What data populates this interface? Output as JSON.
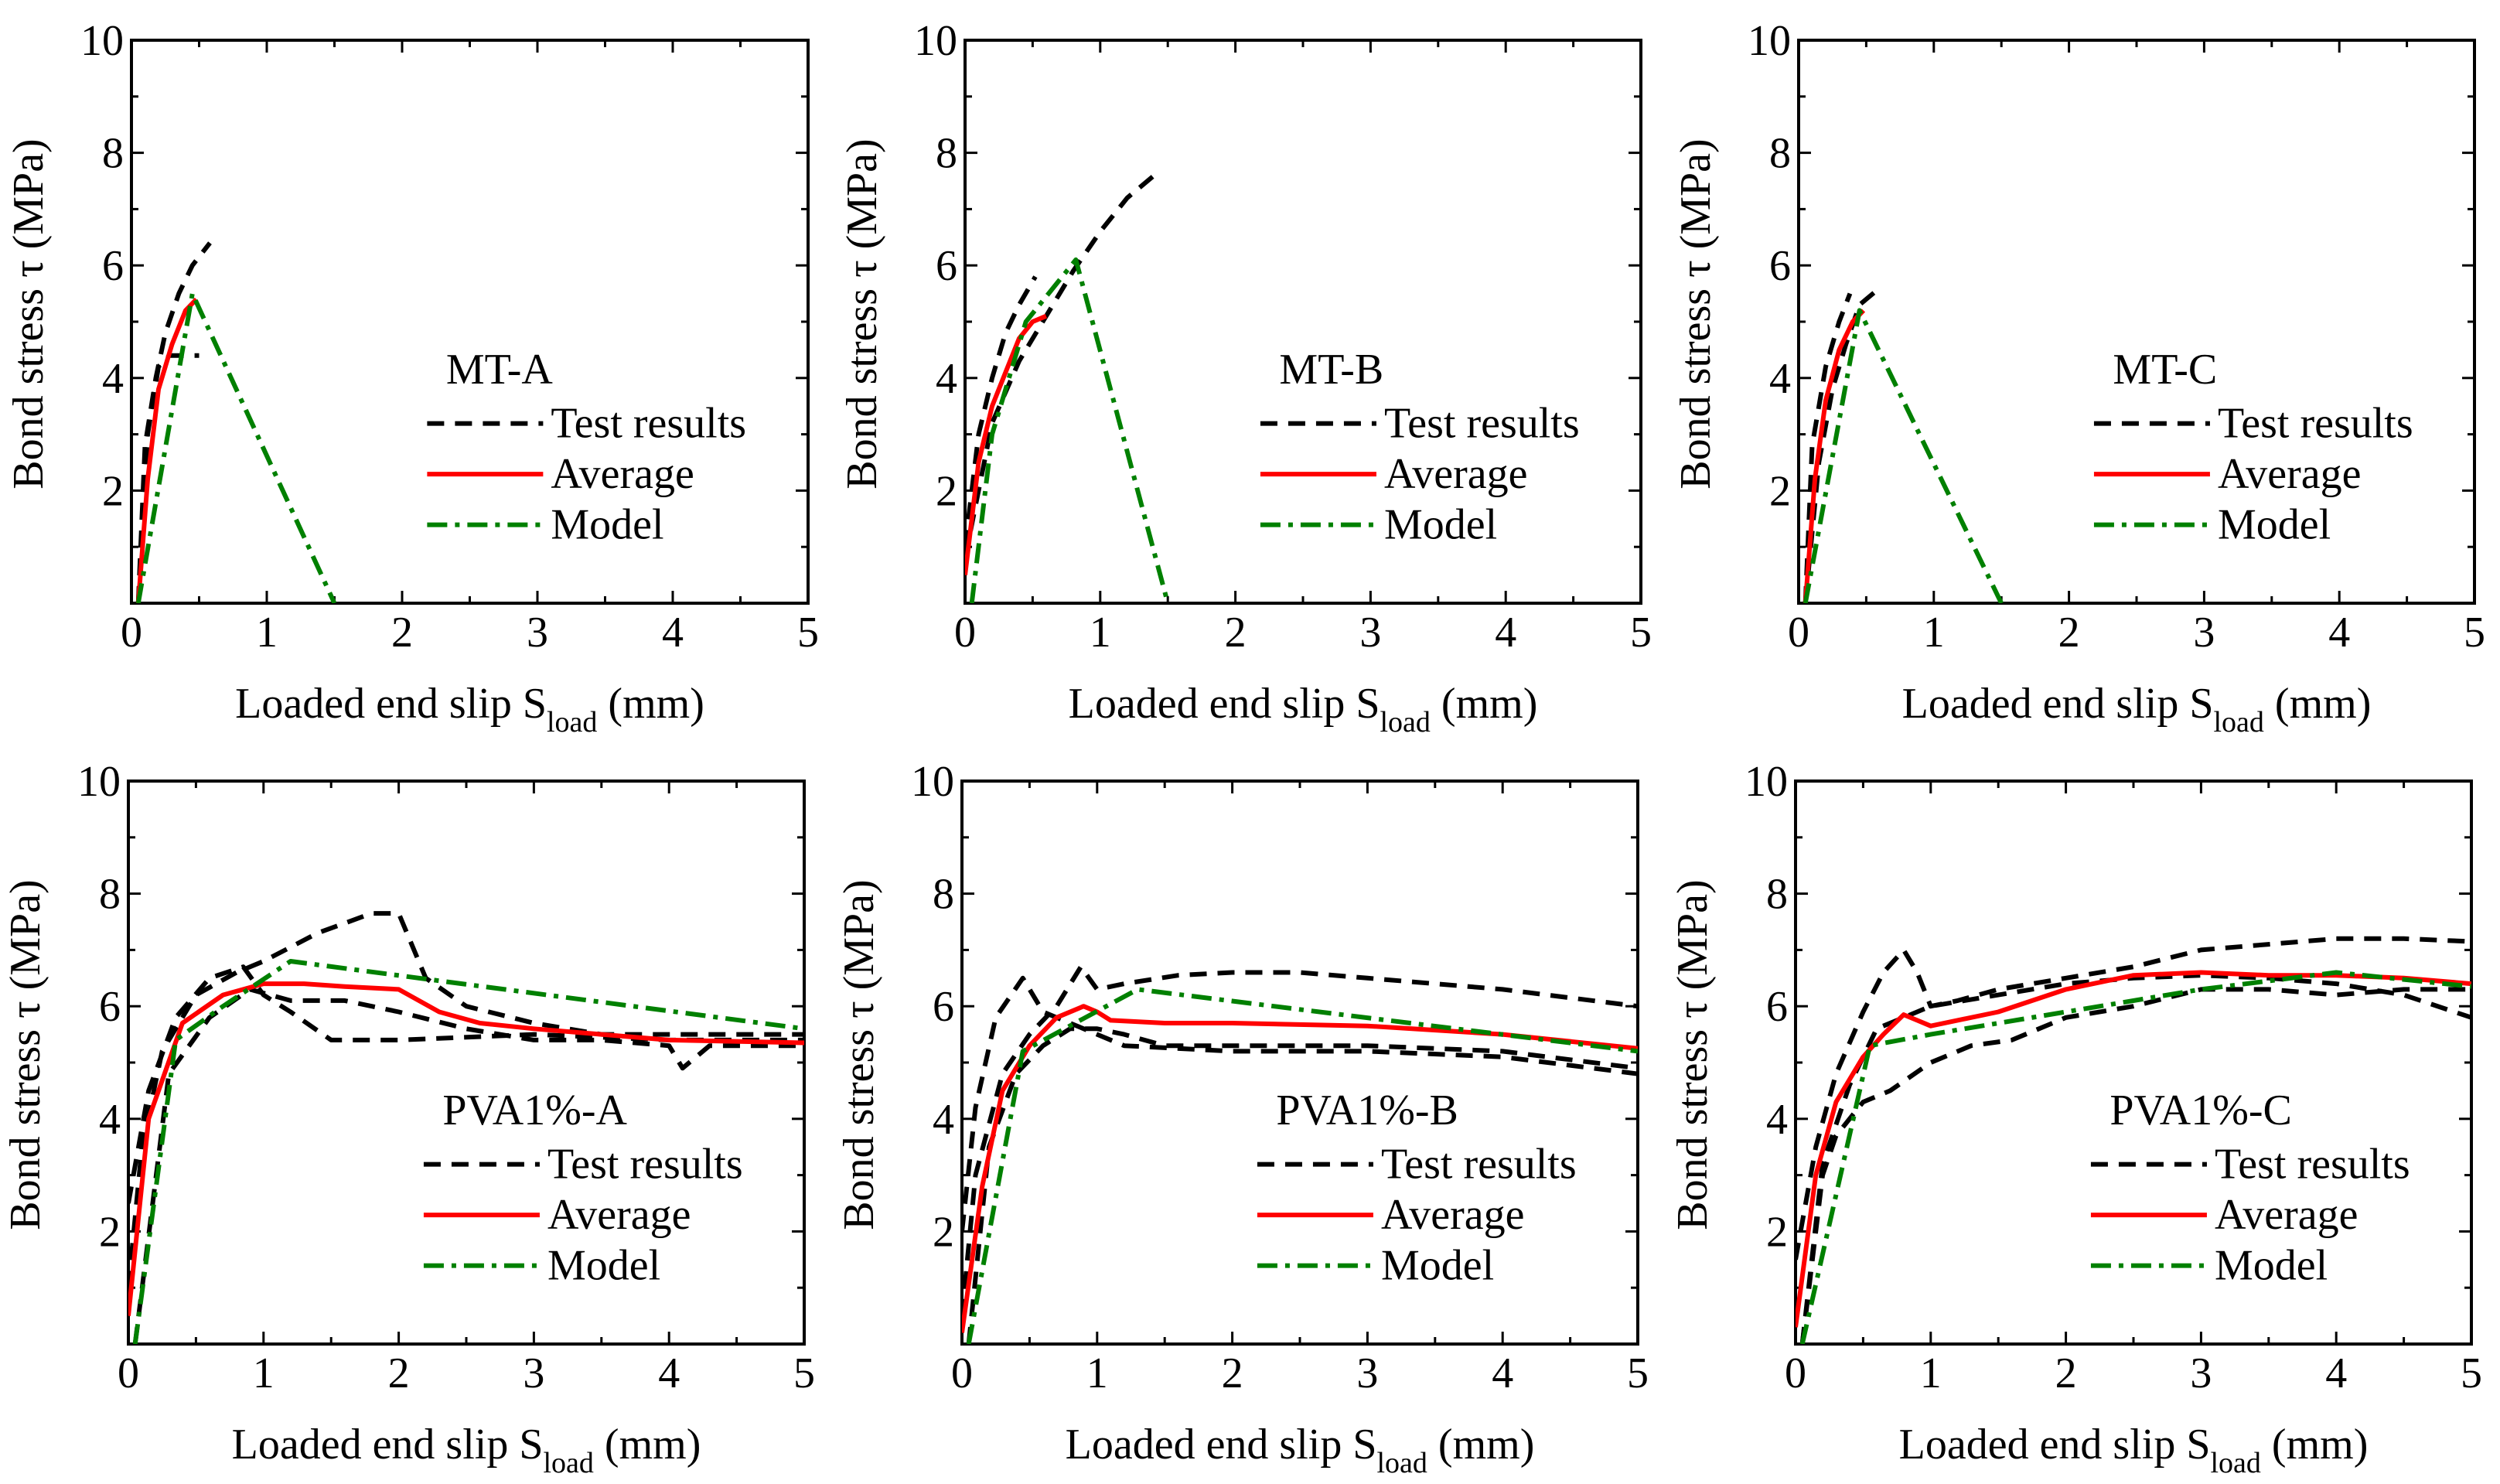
{
  "figure": {
    "colors": {
      "test": "#000000",
      "average": "#ff0000",
      "model": "#008000",
      "axis": "#000000",
      "background": "#ffffff"
    },
    "legend_labels": {
      "test": "Test results",
      "average": "Average",
      "model": "Model"
    }
  },
  "chart_data": [
    {
      "type": "line",
      "panel": "MT-A",
      "label": "MT-A",
      "xlabel": "Loaded end slip S",
      "xlabel_sub": "load",
      "xlabel_unit": " (mm)",
      "ylabel": "Bond stress τ (MPa)",
      "xlim": [
        0,
        5
      ],
      "ylim": [
        0,
        10
      ],
      "xticks": [
        "0",
        "1",
        "2",
        "3",
        "4",
        "5"
      ],
      "yticks": [
        "2",
        "4",
        "6",
        "8",
        "10"
      ],
      "legend": [
        "Test results",
        "Average",
        "Model"
      ],
      "series": [
        {
          "name": "Test results",
          "style": "test",
          "x": [
            0.05,
            0.1,
            0.18,
            0.25,
            0.35,
            0.45,
            0.58
          ],
          "y": [
            0,
            2.8,
            4.0,
            4.8,
            5.5,
            6.0,
            6.4
          ]
        },
        {
          "name": "Test results",
          "style": "test",
          "x": [
            0.05,
            0.12,
            0.2,
            0.28,
            0.4,
            0.5
          ],
          "y": [
            0,
            3.0,
            4.2,
            4.4,
            4.4,
            4.4
          ]
        },
        {
          "name": "Average",
          "style": "average",
          "x": [
            0.05,
            0.12,
            0.2,
            0.3,
            0.4,
            0.48
          ],
          "y": [
            0,
            2.2,
            3.8,
            4.6,
            5.2,
            5.4
          ]
        },
        {
          "name": "Model",
          "style": "model",
          "x": [
            0.05,
            0.45,
            1.5
          ],
          "y": [
            0,
            5.5,
            0
          ]
        }
      ]
    },
    {
      "type": "line",
      "panel": "MT-B",
      "label": "MT-B",
      "xlabel": "Loaded end slip S",
      "xlabel_sub": "load",
      "xlabel_unit": " (mm)",
      "ylabel": "Bond stress τ (MPa)",
      "xlim": [
        0,
        5
      ],
      "ylim": [
        0,
        10
      ],
      "xticks": [
        "0",
        "1",
        "2",
        "3",
        "4",
        "5"
      ],
      "yticks": [
        "2",
        "4",
        "6",
        "8",
        "10"
      ],
      "legend": [
        "Test results",
        "Average",
        "Model"
      ],
      "series": [
        {
          "name": "Test results",
          "style": "test",
          "x": [
            0.0,
            0.1,
            0.2,
            0.3,
            0.4,
            0.52
          ],
          "y": [
            1.0,
            3.0,
            4.0,
            4.8,
            5.3,
            5.8
          ]
        },
        {
          "name": "Test results",
          "style": "test",
          "x": [
            0.0,
            0.2,
            0.4,
            0.6,
            0.8,
            1.0,
            1.2,
            1.4
          ],
          "y": [
            0.8,
            3.2,
            4.3,
            5.1,
            5.9,
            6.6,
            7.2,
            7.6
          ]
        },
        {
          "name": "Average",
          "style": "average",
          "x": [
            0.0,
            0.1,
            0.2,
            0.3,
            0.4,
            0.5,
            0.6
          ],
          "y": [
            0.5,
            2.5,
            3.5,
            4.1,
            4.7,
            5.0,
            5.1
          ]
        },
        {
          "name": "Model",
          "style": "model",
          "x": [
            0.05,
            0.2,
            0.45,
            0.82,
            1.5
          ],
          "y": [
            0,
            3.0,
            5.0,
            6.1,
            0
          ]
        }
      ]
    },
    {
      "type": "line",
      "panel": "MT-C",
      "label": "MT-C",
      "xlabel": "Loaded end slip S",
      "xlabel_sub": "load",
      "xlabel_unit": " (mm)",
      "ylabel": "Bond stress τ (MPa)",
      "xlim": [
        0,
        5
      ],
      "ylim": [
        0,
        10
      ],
      "xticks": [
        "0",
        "1",
        "2",
        "3",
        "4",
        "5"
      ],
      "yticks": [
        "2",
        "4",
        "6",
        "8",
        "10"
      ],
      "legend": [
        "Test results",
        "Average",
        "Model"
      ],
      "series": [
        {
          "name": "Test results",
          "style": "test",
          "x": [
            0.05,
            0.1,
            0.2,
            0.3,
            0.38
          ],
          "y": [
            0,
            2.8,
            4.2,
            5.0,
            5.5
          ]
        },
        {
          "name": "Test results",
          "style": "test",
          "x": [
            0.05,
            0.15,
            0.25,
            0.35,
            0.45,
            0.6
          ],
          "y": [
            0,
            2.5,
            3.8,
            4.6,
            5.3,
            5.6
          ]
        },
        {
          "name": "Average",
          "style": "average",
          "x": [
            0.05,
            0.12,
            0.2,
            0.3,
            0.4,
            0.48
          ],
          "y": [
            0,
            2.2,
            3.6,
            4.5,
            5.0,
            5.2
          ]
        },
        {
          "name": "Model",
          "style": "model",
          "x": [
            0.05,
            0.45,
            1.5
          ],
          "y": [
            0,
            5.2,
            0
          ]
        }
      ]
    },
    {
      "type": "line",
      "panel": "PVA1%-A",
      "label": "PVA1%-A",
      "xlabel": "Loaded end slip S",
      "xlabel_sub": "load",
      "xlabel_unit": " (mm)",
      "ylabel": "Bond stress τ (MPa)",
      "xlim": [
        0,
        5
      ],
      "ylim": [
        0,
        10
      ],
      "xticks": [
        "0",
        "1",
        "2",
        "3",
        "4",
        "5"
      ],
      "yticks": [
        "2",
        "4",
        "6",
        "8",
        "10"
      ],
      "legend": [
        "Test results",
        "Average",
        "Model"
      ],
      "series": [
        {
          "name": "Test results",
          "style": "test",
          "x": [
            0.0,
            0.1,
            0.25,
            0.5,
            0.8,
            1.0,
            1.4,
            1.8,
            2.0,
            2.2,
            2.5,
            3.0,
            3.5,
            4.0,
            5.0
          ],
          "y": [
            1.0,
            3.5,
            5.2,
            6.2,
            6.6,
            6.8,
            7.3,
            7.65,
            7.65,
            6.5,
            6.0,
            5.7,
            5.5,
            5.5,
            5.5
          ]
        },
        {
          "name": "Test results",
          "style": "test",
          "x": [
            0.0,
            0.15,
            0.35,
            0.6,
            0.85,
            1.0,
            1.2,
            1.5,
            2.0,
            3.0,
            4.0,
            5.0
          ],
          "y": [
            2.5,
            4.5,
            5.8,
            6.5,
            6.7,
            6.2,
            5.9,
            5.4,
            5.4,
            5.5,
            5.4,
            5.4
          ]
        },
        {
          "name": "Test results",
          "style": "test",
          "x": [
            0.05,
            0.3,
            0.6,
            0.9,
            1.2,
            1.6,
            2.0,
            2.5,
            3.0,
            3.5,
            4.0,
            4.1,
            4.3,
            5.0
          ],
          "y": [
            0,
            4.8,
            5.8,
            6.3,
            6.1,
            6.1,
            5.9,
            5.6,
            5.4,
            5.4,
            5.3,
            4.9,
            5.3,
            5.3
          ]
        },
        {
          "name": "Average",
          "style": "average",
          "x": [
            0.0,
            0.15,
            0.4,
            0.7,
            1.0,
            1.3,
            1.6,
            2.0,
            2.3,
            2.6,
            3.0,
            3.5,
            4.0,
            5.0
          ],
          "y": [
            0.5,
            4.0,
            5.7,
            6.2,
            6.4,
            6.4,
            6.35,
            6.3,
            5.9,
            5.7,
            5.6,
            5.5,
            5.4,
            5.35
          ]
        },
        {
          "name": "Model",
          "style": "model",
          "x": [
            0.05,
            0.35,
            0.7,
            1.2,
            5.0
          ],
          "y": [
            0,
            5.4,
            6.0,
            6.8,
            5.6
          ]
        }
      ]
    },
    {
      "type": "line",
      "panel": "PVA1%-B",
      "label": "PVA1%-B",
      "xlabel": "Loaded end slip S",
      "xlabel_sub": "load",
      "xlabel_unit": " (mm)",
      "ylabel": "Bond stress τ (MPa)",
      "xlim": [
        0,
        5
      ],
      "ylim": [
        0,
        10
      ],
      "xticks": [
        "0",
        "1",
        "2",
        "3",
        "4",
        "5"
      ],
      "yticks": [
        "2",
        "4",
        "6",
        "8",
        "10"
      ],
      "legend": [
        "Test results",
        "Average",
        "Model"
      ],
      "series": [
        {
          "name": "Test results",
          "style": "test",
          "x": [
            0.0,
            0.1,
            0.25,
            0.45,
            0.6,
            0.8,
            1.0,
            1.2,
            2.0,
            3.0,
            4.0,
            5.0
          ],
          "y": [
            2.0,
            4.2,
            5.8,
            6.5,
            5.9,
            5.7,
            5.5,
            5.3,
            5.2,
            5.2,
            5.1,
            4.8
          ]
        },
        {
          "name": "Test results",
          "style": "test",
          "x": [
            0.0,
            0.1,
            0.3,
            0.5,
            0.7,
            0.88,
            1.0,
            1.2,
            1.6,
            2.0,
            2.5,
            3.0,
            4.0,
            4.5,
            5.0
          ],
          "y": [
            0.5,
            3.0,
            4.8,
            5.5,
            6.0,
            6.7,
            6.3,
            6.4,
            6.55,
            6.6,
            6.6,
            6.5,
            6.3,
            6.15,
            6.0
          ]
        },
        {
          "name": "Test results",
          "style": "test",
          "x": [
            0.05,
            0.2,
            0.4,
            0.6,
            0.8,
            1.0,
            1.2,
            1.5,
            2.0,
            3.0,
            4.0,
            5.0
          ],
          "y": [
            0,
            3.5,
            4.8,
            5.3,
            5.6,
            5.6,
            5.5,
            5.3,
            5.3,
            5.3,
            5.2,
            4.9
          ]
        },
        {
          "name": "Average",
          "style": "average",
          "x": [
            0.0,
            0.15,
            0.3,
            0.5,
            0.7,
            0.9,
            1.0,
            1.1,
            1.5,
            2.0,
            3.0,
            4.0,
            5.0
          ],
          "y": [
            0.2,
            2.8,
            4.5,
            5.3,
            5.8,
            6.0,
            5.9,
            5.75,
            5.7,
            5.7,
            5.65,
            5.5,
            5.25
          ]
        },
        {
          "name": "Model",
          "style": "model",
          "x": [
            0.05,
            0.45,
            1.3,
            5.0
          ],
          "y": [
            0,
            5.2,
            6.3,
            5.2
          ]
        }
      ]
    },
    {
      "type": "line",
      "panel": "PVA1%-C",
      "label": "PVA1%-C",
      "xlabel": "Loaded end slip S",
      "xlabel_sub": "load",
      "xlabel_unit": " (mm)",
      "ylabel": "Bond stress τ (MPa)",
      "xlim": [
        0,
        5
      ],
      "ylim": [
        0,
        10
      ],
      "xticks": [
        "0",
        "1",
        "2",
        "3",
        "4",
        "5"
      ],
      "yticks": [
        "2",
        "4",
        "6",
        "8",
        "10"
      ],
      "legend": [
        "Test results",
        "Average",
        "Model"
      ],
      "series": [
        {
          "name": "Test results",
          "style": "test",
          "x": [
            0.0,
            0.15,
            0.3,
            0.5,
            0.65,
            0.8,
            0.9,
            1.0,
            1.2,
            1.5,
            2.0,
            2.5,
            3.0,
            3.5,
            4.0,
            4.5,
            5.0
          ],
          "y": [
            1.5,
            3.5,
            4.8,
            5.9,
            6.6,
            7.0,
            6.6,
            6.0,
            6.1,
            6.3,
            6.5,
            6.7,
            7.0,
            7.1,
            7.2,
            7.2,
            7.15
          ]
        },
        {
          "name": "Test results",
          "style": "test",
          "x": [
            0.05,
            0.2,
            0.4,
            0.6,
            1.0,
            1.5,
            2.0,
            2.5,
            3.0,
            3.5,
            4.0,
            4.5,
            5.0
          ],
          "y": [
            0,
            3.2,
            4.6,
            5.6,
            6.0,
            6.2,
            6.4,
            6.5,
            6.55,
            6.5,
            6.4,
            6.2,
            5.8
          ]
        },
        {
          "name": "Test results",
          "style": "test",
          "x": [
            0.05,
            0.2,
            0.3,
            0.5,
            0.7,
            1.0,
            1.3,
            1.6,
            2.0,
            2.5,
            3.0,
            3.5,
            4.0,
            4.5,
            5.0
          ],
          "y": [
            0,
            3.0,
            3.7,
            4.3,
            4.5,
            5.0,
            5.3,
            5.4,
            5.8,
            6.0,
            6.3,
            6.3,
            6.2,
            6.3,
            6.3
          ]
        },
        {
          "name": "Average",
          "style": "average",
          "x": [
            0.0,
            0.15,
            0.3,
            0.5,
            0.65,
            0.8,
            0.9,
            1.0,
            1.5,
            2.0,
            2.5,
            3.0,
            3.5,
            4.0,
            4.5,
            5.0
          ],
          "y": [
            0.3,
            3.0,
            4.3,
            5.1,
            5.5,
            5.85,
            5.75,
            5.65,
            5.9,
            6.3,
            6.55,
            6.6,
            6.55,
            6.55,
            6.5,
            6.4
          ]
        },
        {
          "name": "Model",
          "style": "model",
          "x": [
            0.05,
            0.55,
            1.0,
            2.0,
            3.0,
            4.0,
            5.0
          ],
          "y": [
            0,
            5.3,
            5.5,
            5.9,
            6.3,
            6.6,
            6.35
          ]
        }
      ]
    }
  ]
}
